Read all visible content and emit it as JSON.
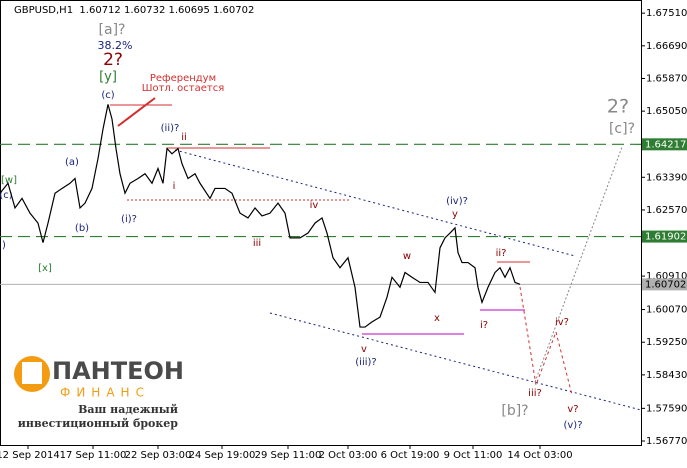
{
  "chart_data": {
    "type": "line",
    "header": "GBPUSD,H1  1.60712 1.60732 1.60695 1.60702",
    "color": "#000000",
    "x": [
      0,
      8,
      15,
      22,
      30,
      38,
      43,
      48,
      55,
      62,
      70,
      75,
      80,
      85,
      92,
      98,
      103,
      108,
      112,
      116,
      120,
      125,
      130,
      138,
      145,
      152,
      158,
      163,
      167,
      172,
      178,
      182,
      188,
      195,
      200,
      210,
      215,
      225,
      232,
      240,
      248,
      255,
      262,
      270,
      278,
      285,
      290,
      300,
      308,
      315,
      322,
      327,
      333,
      340,
      348,
      355,
      360,
      365,
      372,
      380,
      387,
      392,
      400,
      405,
      412,
      420,
      428,
      435,
      440,
      445,
      450,
      455,
      458,
      462,
      468,
      475,
      478,
      482,
      488,
      495,
      500,
      505,
      510,
      515,
      520
    ],
    "values": [
      1.6299,
      1.6324,
      1.6262,
      1.6286,
      1.6249,
      1.6224,
      1.6175,
      1.6224,
      1.6299,
      1.6311,
      1.6324,
      1.6336,
      1.6262,
      1.6274,
      1.6311,
      1.6386,
      1.646,
      1.6522,
      1.6485,
      1.6411,
      1.6348,
      1.6299,
      1.6324,
      1.6336,
      1.6348,
      1.6324,
      1.6361,
      1.6324,
      1.6411,
      1.6398,
      1.6411,
      1.6373,
      1.6336,
      1.6348,
      1.6324,
      1.6286,
      1.6311,
      1.6311,
      1.6299,
      1.6249,
      1.6237,
      1.6262,
      1.6242,
      1.6249,
      1.6274,
      1.6249,
      1.6187,
      1.6187,
      1.6199,
      1.6224,
      1.6237,
      1.6199,
      1.6137,
      1.6112,
      1.6137,
      1.6063,
      1.5963,
      1.5963,
      1.5976,
      1.5988,
      1.6038,
      1.6088,
      1.6063,
      1.61,
      1.6088,
      1.6075,
      1.6075,
      1.605,
      1.6162,
      1.6187,
      1.6199,
      1.6212,
      1.615,
      1.6125,
      1.6125,
      1.6112,
      1.6063,
      1.6025,
      1.6063,
      1.61,
      1.6112,
      1.6088,
      1.6112,
      1.6075,
      1.60702
    ],
    "ylim": [
      1.5667,
      1.6784
    ],
    "yticks": [
      {
        "value": 1.6751,
        "label": "1.67510"
      },
      {
        "value": 1.6669,
        "label": "1.66690"
      },
      {
        "value": 1.6587,
        "label": "1.65870"
      },
      {
        "value": 1.6505,
        "label": "1.65050"
      },
      {
        "value": 1.6339,
        "label": "1.63390"
      },
      {
        "value": 1.6257,
        "label": "1.62570"
      },
      {
        "value": 1.6091,
        "label": "1.60910"
      },
      {
        "value": 1.6007,
        "label": "1.60070"
      },
      {
        "value": 1.5925,
        "label": "1.59250"
      },
      {
        "value": 1.5843,
        "label": "1.58430"
      },
      {
        "value": 1.5759,
        "label": "1.57590"
      },
      {
        "value": 1.5677,
        "label": "1.56770"
      }
    ],
    "xlim": [
      0,
      641
    ],
    "xticks": [
      {
        "value": 28,
        "label": "12 Sep 2014"
      },
      {
        "value": 93,
        "label": "17 Sep 11:00"
      },
      {
        "value": 158,
        "label": "22 Sep 03:00"
      },
      {
        "value": 222,
        "label": "24 Sep 19:00"
      },
      {
        "value": 288,
        "label": "29 Sep 11:00"
      },
      {
        "value": 348,
        "label": "2 Oct 03:00"
      },
      {
        "value": 410,
        "label": "6 Oct 19:00"
      },
      {
        "value": 473,
        "label": "9 Oct 11:00"
      },
      {
        "value": 540,
        "label": "14 Oct 03:00"
      }
    ],
    "levels": [
      {
        "value": 1.64217,
        "color": "#2e7d32",
        "dashed": true
      },
      {
        "value": 1.61902,
        "color": "#2e7d32",
        "dashed": true
      },
      {
        "value": 1.60702,
        "color": "#b0b0b0",
        "dashed": false
      }
    ],
    "annotations": [
      "[a]?",
      "38.2%",
      "2?",
      "[y]",
      "(c)",
      "Референдум",
      "Шотл. остается",
      "(ii)?",
      "ii",
      "i",
      "(i)?",
      "(a)",
      "(b)",
      "[w]",
      "(c)",
      ")",
      "[x]",
      "iv",
      "iii",
      "(iv)?",
      "y",
      "w",
      "x",
      "v",
      "(iii)?",
      "ii?",
      "i?",
      "iv?",
      "iii?",
      "v?",
      "(v)?",
      "[b]?",
      "2?",
      "[c]?"
    ]
  },
  "logo": {
    "name": "ПАНТЕОН",
    "sub": "ФИНАНС",
    "slogan": [
      "Ваш надежный",
      "инвестиционный брокер"
    ]
  }
}
